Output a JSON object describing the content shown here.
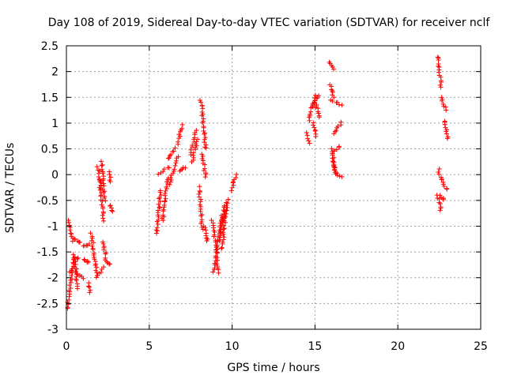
{
  "chart_data": {
    "type": "scatter",
    "title": "Day 108 of 2019, Sidereal Day-to-day VTEC variation (SDTVAR) for receiver nclf",
    "xlabel": "GPS time / hours",
    "ylabel": "SDTVAR / TECUs",
    "xlim": [
      0,
      25
    ],
    "ylim": [
      -3,
      2.5
    ],
    "xticks": [
      "0",
      "5",
      "10",
      "15",
      "20",
      "25"
    ],
    "yticks": [
      "-3",
      "-2.5",
      "-2",
      "-1.5",
      "-1",
      "-0.5",
      "0",
      "0.5",
      "1",
      "1.5",
      "2",
      "2.5"
    ],
    "grid": true,
    "marker": "plus",
    "color": "#ff0000",
    "segments": [
      {
        "x": [
          0.05,
          0.45
        ],
        "y": [
          -2.6,
          -1.6
        ]
      },
      {
        "x": [
          0.1,
          0.4
        ],
        "y": [
          -0.9,
          -1.3
        ]
      },
      {
        "x": [
          0.2,
          0.7
        ],
        "y": [
          -1.9,
          -1.6
        ]
      },
      {
        "x": [
          0.45,
          0.7
        ],
        "y": [
          -1.55,
          -2.2
        ]
      },
      {
        "x": [
          0.5,
          0.8
        ],
        "y": [
          -1.25,
          -1.3
        ]
      },
      {
        "x": [
          0.6,
          1.0
        ],
        "y": [
          -1.9,
          -2.0
        ]
      },
      {
        "x": [
          1.0,
          1.4
        ],
        "y": [
          -1.4,
          -1.35
        ]
      },
      {
        "x": [
          1.1,
          1.3
        ],
        "y": [
          -1.65,
          -1.7
        ]
      },
      {
        "x": [
          1.35,
          1.45
        ],
        "y": [
          -2.1,
          -2.3
        ]
      },
      {
        "x": [
          1.5,
          1.85
        ],
        "y": [
          -1.15,
          -1.95
        ]
      },
      {
        "x": [
          1.8,
          2.2
        ],
        "y": [
          -2.0,
          -1.8
        ]
      },
      {
        "x": [
          1.9,
          2.1
        ],
        "y": [
          0.15,
          -0.25
        ]
      },
      {
        "x": [
          2.0,
          2.25
        ],
        "y": [
          -0.1,
          -0.9
        ]
      },
      {
        "x": [
          2.15,
          2.3
        ],
        "y": [
          0.25,
          -0.5
        ]
      },
      {
        "x": [
          2.2,
          2.4
        ],
        "y": [
          -1.3,
          -1.6
        ]
      },
      {
        "x": [
          2.3,
          2.6
        ],
        "y": [
          -1.65,
          -1.75
        ]
      },
      {
        "x": [
          2.55,
          2.7
        ],
        "y": [
          0.05,
          -0.15
        ]
      },
      {
        "x": [
          2.6,
          2.75
        ],
        "y": [
          -0.6,
          -0.7
        ]
      },
      {
        "x": [
          5.45,
          5.7
        ],
        "y": [
          -1.15,
          -0.3
        ]
      },
      {
        "x": [
          5.6,
          6.2
        ],
        "y": [
          0.0,
          0.15
        ]
      },
      {
        "x": [
          5.8,
          6.1
        ],
        "y": [
          -0.9,
          -0.05
        ]
      },
      {
        "x": [
          6.1,
          6.6
        ],
        "y": [
          0.3,
          0.5
        ]
      },
      {
        "x": [
          6.2,
          6.7
        ],
        "y": [
          -0.2,
          0.35
        ]
      },
      {
        "x": [
          6.7,
          7.0
        ],
        "y": [
          0.6,
          0.95
        ]
      },
      {
        "x": [
          6.8,
          7.2
        ],
        "y": [
          0.05,
          0.15
        ]
      },
      {
        "x": [
          7.5,
          7.8
        ],
        "y": [
          0.4,
          0.85
        ]
      },
      {
        "x": [
          7.6,
          7.9
        ],
        "y": [
          0.25,
          0.7
        ]
      },
      {
        "x": [
          8.0,
          8.2
        ],
        "y": [
          -0.25,
          -1.05
        ]
      },
      {
        "x": [
          8.1,
          8.4
        ],
        "y": [
          1.45,
          0.5
        ]
      },
      {
        "x": [
          8.2,
          8.4
        ],
        "y": [
          0.4,
          -0.05
        ]
      },
      {
        "x": [
          8.3,
          8.5
        ],
        "y": [
          -1.0,
          -1.3
        ]
      },
      {
        "x": [
          8.8,
          9.2
        ],
        "y": [
          -0.9,
          -1.9
        ]
      },
      {
        "x": [
          8.9,
          9.4
        ],
        "y": [
          -1.9,
          -0.8
        ]
      },
      {
        "x": [
          9.2,
          9.6
        ],
        "y": [
          -1.3,
          -0.55
        ]
      },
      {
        "x": [
          9.4,
          9.6
        ],
        "y": [
          -1.45,
          -0.7
        ]
      },
      {
        "x": [
          9.5,
          9.75
        ],
        "y": [
          -0.9,
          -0.5
        ]
      },
      {
        "x": [
          9.95,
          10.25
        ],
        "y": [
          -0.3,
          -0.0
        ]
      },
      {
        "x": [
          14.55,
          14.65
        ],
        "y": [
          0.8,
          0.6
        ]
      },
      {
        "x": [
          14.65,
          15.0
        ],
        "y": [
          1.05,
          1.55
        ]
      },
      {
        "x": [
          14.8,
          15.2
        ],
        "y": [
          1.3,
          1.55
        ]
      },
      {
        "x": [
          14.85,
          15.1
        ],
        "y": [
          1.0,
          0.75
        ]
      },
      {
        "x": [
          15.0,
          15.3
        ],
        "y": [
          1.4,
          1.1
        ]
      },
      {
        "x": [
          15.9,
          16.1
        ],
        "y": [
          2.2,
          2.05
        ]
      },
      {
        "x": [
          15.95,
          16.1
        ],
        "y": [
          1.75,
          1.5
        ]
      },
      {
        "x": [
          16.0,
          16.6
        ],
        "y": [
          1.45,
          1.35
        ]
      },
      {
        "x": [
          16.0,
          16.2
        ],
        "y": [
          0.5,
          0.1
        ]
      },
      {
        "x": [
          16.1,
          16.6
        ],
        "y": [
          0.8,
          1.0
        ]
      },
      {
        "x": [
          16.1,
          16.5
        ],
        "y": [
          0.45,
          0.55
        ]
      },
      {
        "x": [
          16.2,
          16.6
        ],
        "y": [
          0.05,
          -0.05
        ]
      },
      {
        "x": [
          16.1,
          16.3
        ],
        "y": [
          0.3,
          0.0
        ]
      },
      {
        "x": [
          22.4,
          22.6
        ],
        "y": [
          2.3,
          1.7
        ]
      },
      {
        "x": [
          22.6,
          22.9
        ],
        "y": [
          1.5,
          1.25
        ]
      },
      {
        "x": [
          22.8,
          23.0
        ],
        "y": [
          1.05,
          0.7
        ]
      },
      {
        "x": [
          22.4,
          22.6
        ],
        "y": [
          -0.4,
          -0.7
        ]
      },
      {
        "x": [
          22.45,
          22.6
        ],
        "y": [
          0.1,
          -0.1
        ]
      },
      {
        "x": [
          22.6,
          22.8
        ],
        "y": [
          -0.4,
          -0.5
        ]
      },
      {
        "x": [
          22.7,
          22.95
        ],
        "y": [
          -0.1,
          -0.3
        ]
      }
    ]
  }
}
